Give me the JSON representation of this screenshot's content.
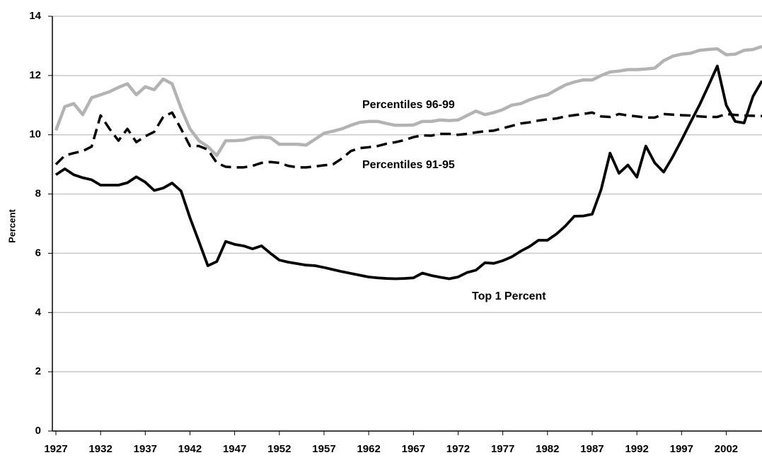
{
  "chart_data": {
    "type": "line",
    "y_label": "Percent",
    "annotations": [
      "Percentiles 96-99",
      "Percentiles 91-95",
      "Top 1 Percent"
    ],
    "x": [
      1927,
      1928,
      1929,
      1930,
      1931,
      1932,
      1933,
      1934,
      1935,
      1936,
      1937,
      1938,
      1939,
      1940,
      1941,
      1942,
      1943,
      1944,
      1945,
      1946,
      1947,
      1948,
      1949,
      1950,
      1951,
      1952,
      1953,
      1954,
      1955,
      1956,
      1957,
      1958,
      1959,
      1960,
      1961,
      1962,
      1963,
      1964,
      1965,
      1966,
      1967,
      1968,
      1969,
      1970,
      1971,
      1972,
      1973,
      1974,
      1975,
      1976,
      1977,
      1978,
      1979,
      1980,
      1981,
      1982,
      1983,
      1984,
      1985,
      1986,
      1987,
      1988,
      1989,
      1990,
      1991,
      1992,
      1993,
      1994,
      1995,
      1996,
      1997,
      1998,
      1999,
      2000,
      2001,
      2002,
      2003,
      2004,
      2005,
      2006
    ],
    "series": [
      {
        "name": "Percentiles 96-99",
        "color": "#b3b3b3",
        "dash": false,
        "values": [
          10.15,
          10.95,
          11.05,
          10.68,
          11.25,
          11.35,
          11.45,
          11.6,
          11.72,
          11.35,
          11.62,
          11.52,
          11.88,
          11.72,
          10.9,
          10.2,
          9.8,
          9.6,
          9.3,
          9.8,
          9.8,
          9.82,
          9.9,
          9.92,
          9.9,
          9.68,
          9.68,
          9.68,
          9.65,
          9.85,
          10.05,
          10.12,
          10.2,
          10.32,
          10.42,
          10.45,
          10.45,
          10.38,
          10.32,
          10.32,
          10.33,
          10.45,
          10.45,
          10.5,
          10.48,
          10.5,
          10.65,
          10.8,
          10.68,
          10.75,
          10.85,
          11.0,
          11.05,
          11.18,
          11.28,
          11.35,
          11.52,
          11.68,
          11.78,
          11.85,
          11.85,
          12.0,
          12.12,
          12.15,
          12.2,
          12.2,
          12.22,
          12.25,
          12.5,
          12.65,
          12.72,
          12.75,
          12.85,
          12.88,
          12.9,
          12.7,
          12.72,
          12.85,
          12.88,
          12.98
        ]
      },
      {
        "name": "Percentiles 91-95",
        "color": "#000000",
        "dash": true,
        "values": [
          9.0,
          9.3,
          9.38,
          9.45,
          9.6,
          10.65,
          10.2,
          9.8,
          10.2,
          9.75,
          9.95,
          10.1,
          10.6,
          10.75,
          10.2,
          9.62,
          9.62,
          9.5,
          9.05,
          8.92,
          8.9,
          8.9,
          8.95,
          9.05,
          9.08,
          9.05,
          8.95,
          8.9,
          8.9,
          8.93,
          8.97,
          9.0,
          9.2,
          9.45,
          9.55,
          9.58,
          9.62,
          9.7,
          9.75,
          9.82,
          9.92,
          9.98,
          9.97,
          10.03,
          10.03,
          10.0,
          10.03,
          10.08,
          10.12,
          10.14,
          10.22,
          10.3,
          10.38,
          10.42,
          10.48,
          10.52,
          10.55,
          10.62,
          10.66,
          10.7,
          10.75,
          10.62,
          10.6,
          10.7,
          10.65,
          10.62,
          10.58,
          10.58,
          10.7,
          10.68,
          10.66,
          10.65,
          10.62,
          10.6,
          10.6,
          10.7,
          10.67,
          10.65,
          10.64,
          10.63
        ]
      },
      {
        "name": "Top 1 Percent",
        "color": "#000000",
        "dash": false,
        "values": [
          8.65,
          8.85,
          8.65,
          8.55,
          8.48,
          8.3,
          8.3,
          8.3,
          8.38,
          8.58,
          8.4,
          8.12,
          8.2,
          8.37,
          8.1,
          7.2,
          6.4,
          5.58,
          5.72,
          6.4,
          6.3,
          6.25,
          6.15,
          6.25,
          6.0,
          5.77,
          5.7,
          5.65,
          5.6,
          5.58,
          5.52,
          5.45,
          5.38,
          5.32,
          5.26,
          5.2,
          5.17,
          5.15,
          5.14,
          5.15,
          5.17,
          5.33,
          5.25,
          5.19,
          5.14,
          5.2,
          5.35,
          5.43,
          5.68,
          5.66,
          5.75,
          5.88,
          6.07,
          6.23,
          6.44,
          6.44,
          6.65,
          6.92,
          7.25,
          7.26,
          7.32,
          8.15,
          9.38,
          8.7,
          8.98,
          8.57,
          9.62,
          9.05,
          8.74,
          9.25,
          9.82,
          10.42,
          11.0,
          11.65,
          12.32,
          11.0,
          10.45,
          10.4,
          11.3,
          11.82
        ]
      }
    ],
    "xlim": [
      1927,
      2006
    ],
    "xticks": [
      1927,
      1932,
      1937,
      1942,
      1947,
      1952,
      1957,
      1962,
      1967,
      1972,
      1977,
      1982,
      1987,
      1992,
      1997,
      2002
    ],
    "ylim": [
      0,
      14
    ],
    "yticks": [
      0,
      2,
      4,
      6,
      8,
      10,
      12,
      14
    ],
    "grid": true
  }
}
